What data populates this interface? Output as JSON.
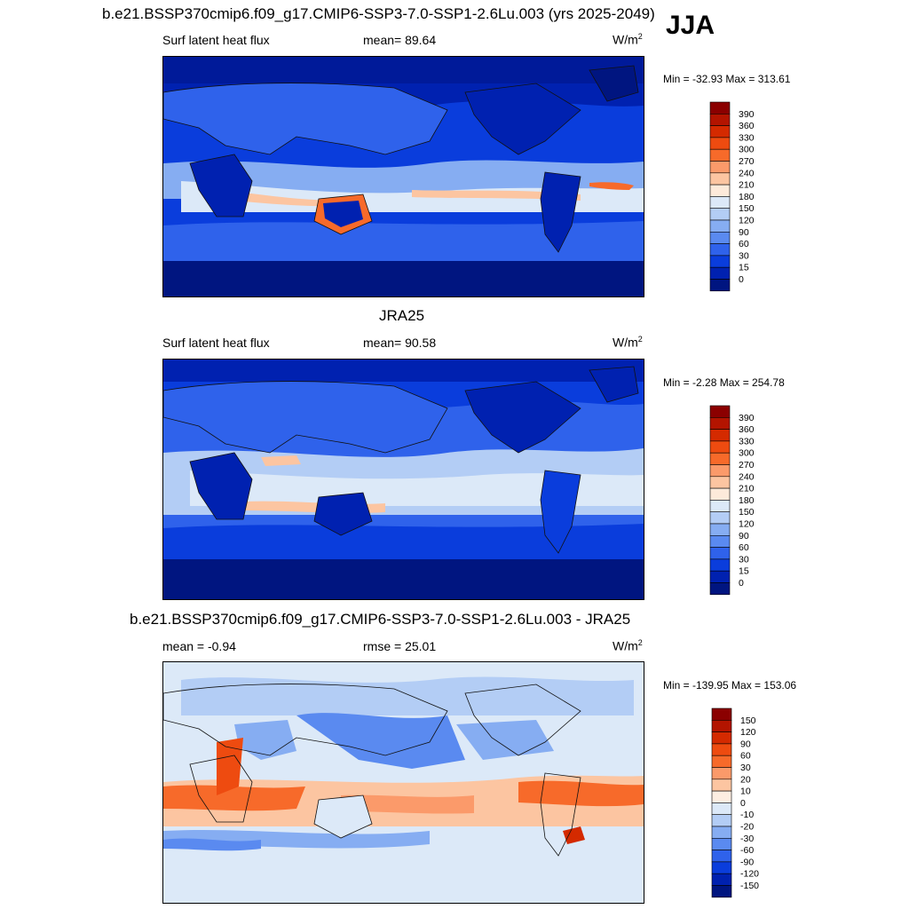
{
  "tag": "JJA",
  "panels": [
    {
      "title": "b.e21.BSSP370cmip6.f09_g17.CMIP6-SSP3-7.0-SSP1-2.6Lu.003 (yrs 2025-2049)",
      "left_label": "Surf latent heat flux",
      "center_label": "mean=  89.64",
      "units": "W/m",
      "units_sup": "2",
      "minmax": "Min = -32.93 Max = 313.61",
      "colorbar": {
        "labels": [
          "390",
          "360",
          "330",
          "300",
          "270",
          "240",
          "210",
          "180",
          "150",
          "120",
          "90",
          "60",
          "30",
          "15",
          "0"
        ],
        "colors": [
          "#8b0000",
          "#b31400",
          "#d42a00",
          "#ee4b10",
          "#f76a2a",
          "#fb9a6a",
          "#fcc5a1",
          "#fdeada",
          "#dce9f8",
          "#b3cdf5",
          "#86adf2",
          "#5a8af0",
          "#2f62eb",
          "#0a3ddc",
          "#0021b0",
          "#001580"
        ]
      }
    },
    {
      "title": "JRA25",
      "left_label": "Surf latent heat flux",
      "center_label": "mean=  90.58",
      "units": "W/m",
      "units_sup": "2",
      "minmax": "Min =  -2.28 Max = 254.78",
      "colorbar": {
        "labels": [
          "390",
          "360",
          "330",
          "300",
          "270",
          "240",
          "210",
          "180",
          "150",
          "120",
          "90",
          "60",
          "30",
          "15",
          "0"
        ],
        "colors": [
          "#8b0000",
          "#b31400",
          "#d42a00",
          "#ee4b10",
          "#f76a2a",
          "#fb9a6a",
          "#fcc5a1",
          "#fdeada",
          "#dce9f8",
          "#b3cdf5",
          "#86adf2",
          "#5a8af0",
          "#2f62eb",
          "#0a3ddc",
          "#0021b0",
          "#001580"
        ]
      }
    },
    {
      "title": "b.e21.BSSP370cmip6.f09_g17.CMIP6-SSP3-7.0-SSP1-2.6Lu.003 - JRA25",
      "left_label": "mean =  -0.94",
      "center_label": "rmse =  25.01",
      "units": "W/m",
      "units_sup": "2",
      "minmax": "Min = -139.95 Max = 153.06",
      "colorbar": {
        "labels": [
          "150",
          "120",
          "90",
          "60",
          "30",
          "20",
          "10",
          "0",
          "-10",
          "-20",
          "-30",
          "-60",
          "-90",
          "-120",
          "-150"
        ],
        "colors": [
          "#8b0000",
          "#b31400",
          "#d42a00",
          "#ee4b10",
          "#f76a2a",
          "#fb9a6a",
          "#fcc5a1",
          "#fdeee2",
          "#dce9f8",
          "#b3cdf5",
          "#86adf2",
          "#5a8af0",
          "#2f62eb",
          "#0a3ddc",
          "#0021b0",
          "#001580"
        ]
      }
    }
  ]
}
